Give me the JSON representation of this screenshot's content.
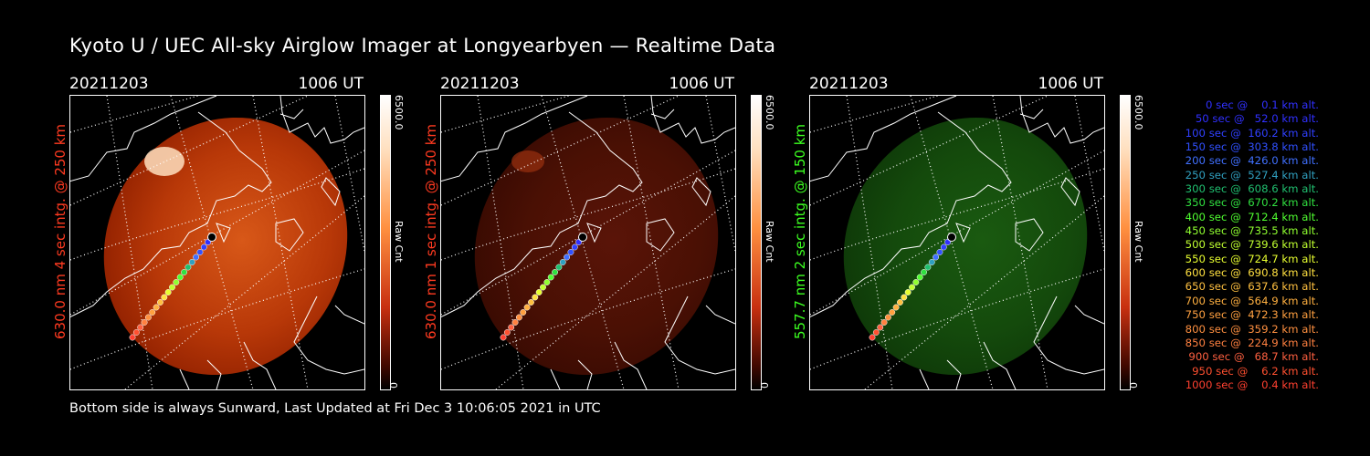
{
  "title": "Kyoto U / UEC All-sky Airglow Imager at Longyearbyen — Realtime Data",
  "footer": "Bottom side is always Sunward, Last Updated at Fri Dec  3 10:06:05 2021 in UTC",
  "panels": [
    {
      "date": "20211203",
      "time": "1006 UT",
      "side_label": "630.0 nm 4 sec intg. @ 250 km",
      "label_color": "#ff3a20",
      "cbar_max": "6500.0",
      "cbar_min": "0",
      "cbar_unit": "Raw Cnt",
      "tint": "red",
      "intensity": 1.0
    },
    {
      "date": "20211203",
      "time": "1006 UT",
      "side_label": "630.0 nm 1 sec intg. @ 250 km",
      "label_color": "#ff3a20",
      "cbar_max": "6500.0",
      "cbar_min": "0",
      "cbar_unit": "Raw Cnt",
      "tint": "darkred",
      "intensity": 0.35
    },
    {
      "date": "20211203",
      "time": "1006 UT",
      "side_label": "557.7 nm 2 sec intg. @ 150 km",
      "label_color": "#3cff20",
      "cbar_max": "6500.0",
      "cbar_min": "0",
      "cbar_unit": "Raw Cnt",
      "tint": "green",
      "intensity": 0.3
    }
  ],
  "legend": [
    {
      "text": "   0 sec @    0.1 km alt.",
      "color": "#3030ff"
    },
    {
      "text": "  50 sec @   52.0 km alt.",
      "color": "#3030ff"
    },
    {
      "text": " 100 sec @  160.2 km alt.",
      "color": "#3040ff"
    },
    {
      "text": " 150 sec @  303.8 km alt.",
      "color": "#3050ff"
    },
    {
      "text": " 200 sec @  426.0 km alt.",
      "color": "#4070ff"
    },
    {
      "text": " 250 sec @  527.4 km alt.",
      "color": "#30a0c0"
    },
    {
      "text": " 300 sec @  608.6 km alt.",
      "color": "#20c070"
    },
    {
      "text": " 350 sec @  670.2 km alt.",
      "color": "#30e040"
    },
    {
      "text": " 400 sec @  712.4 km alt.",
      "color": "#50ff30"
    },
    {
      "text": " 450 sec @  735.5 km alt.",
      "color": "#90ff30"
    },
    {
      "text": " 500 sec @  739.6 km alt.",
      "color": "#c0ff30"
    },
    {
      "text": " 550 sec @  724.7 km alt.",
      "color": "#e8ff30"
    },
    {
      "text": " 600 sec @  690.8 km alt.",
      "color": "#ffe040"
    },
    {
      "text": " 650 sec @  637.6 km alt.",
      "color": "#ffc040"
    },
    {
      "text": " 700 sec @  564.9 km alt.",
      "color": "#ffb040"
    },
    {
      "text": " 750 sec @  472.3 km alt.",
      "color": "#ffa040"
    },
    {
      "text": " 800 sec @  359.2 km alt.",
      "color": "#ff9040"
    },
    {
      "text": " 850 sec @  224.9 km alt.",
      "color": "#ff8040"
    },
    {
      "text": " 900 sec @   68.7 km alt.",
      "color": "#ff6040"
    },
    {
      "text": " 950 sec @    6.2 km alt.",
      "color": "#ff5030"
    },
    {
      "text": "1000 sec @    0.4 km alt.",
      "color": "#ff4030"
    }
  ]
}
